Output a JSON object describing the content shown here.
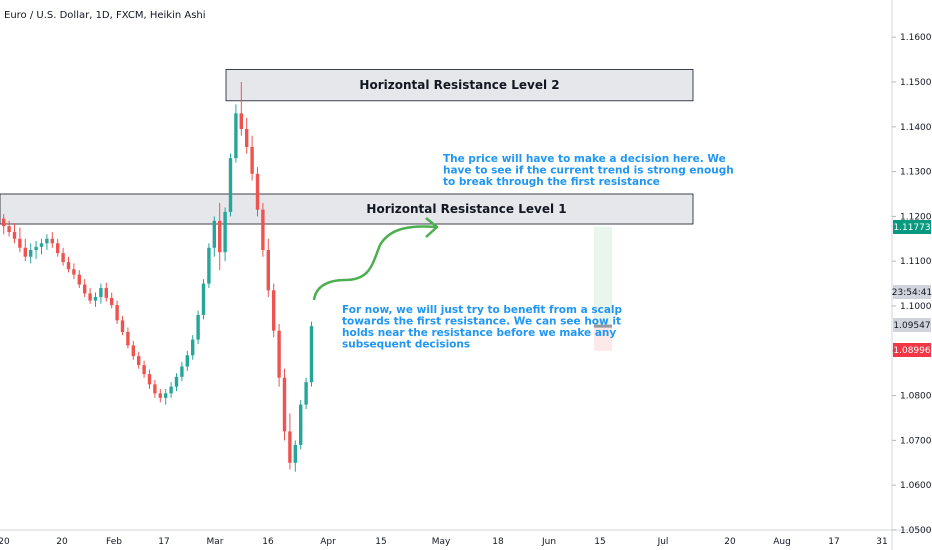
{
  "chart_data": {
    "type": "candlestick",
    "title": "Euro / U.S. Dollar, 1D, FXCM, Heikin Ashi",
    "ylim": [
      1.05,
      1.1683
    ],
    "y_ticks": [
      "1.16000",
      "1.15000",
      "1.14000",
      "1.13000",
      "1.12000",
      "1.11000",
      "1.10000",
      "1.09000",
      "1.08000",
      "1.07000",
      "1.06000",
      "1.05000"
    ],
    "x_ticks": [
      "20",
      "20",
      "Feb",
      "17",
      "Mar",
      "16",
      "Apr",
      "15",
      "May",
      "18",
      "Jun",
      "15",
      "Jul",
      "20",
      "Aug",
      "17",
      "31"
    ],
    "zones": [
      {
        "label": "Horizontal Resistance Level 2",
        "low": 1.1458,
        "high": 1.1528
      },
      {
        "label": "Horizontal Resistance Level 1",
        "low": 1.1183,
        "high": 1.125
      }
    ],
    "annotations": [
      {
        "lines": [
          "The price will have to make a decision here. We",
          "have to see if the current trend is strong enough",
          "to break through the first resistance"
        ]
      },
      {
        "lines": [
          "For now, we will just try to benefit from a scalp",
          "towards the first resistance. We can see how it",
          "holds near the resistance before we make any",
          "subsequent decisions"
        ]
      }
    ],
    "price_tags": [
      {
        "value": "1.11773",
        "bg": "#089981",
        "fg": "#ffffff"
      },
      {
        "value": "23:54:41",
        "bg": "#d1d4dc",
        "fg": "#131722"
      },
      {
        "value": "1.09547",
        "bg": "#d1d4dc",
        "fg": "#131722"
      },
      {
        "value": "1.08996",
        "bg": "#f23645",
        "fg": "#ffffff"
      }
    ],
    "position": {
      "target": 1.1177,
      "entry": 1.0955,
      "stop": 1.09
    },
    "colors": {
      "up": "#26a69a",
      "down": "#ef5350",
      "arrow": "#4caf50",
      "note": "#2196f3"
    },
    "candles": [
      {
        "o": 1.1195,
        "h": 1.1205,
        "l": 1.116,
        "c": 1.1178
      },
      {
        "o": 1.1178,
        "h": 1.119,
        "l": 1.1155,
        "c": 1.1165
      },
      {
        "o": 1.1165,
        "h": 1.1185,
        "l": 1.114,
        "c": 1.115
      },
      {
        "o": 1.115,
        "h": 1.1175,
        "l": 1.112,
        "c": 1.113
      },
      {
        "o": 1.113,
        "h": 1.115,
        "l": 1.11,
        "c": 1.111
      },
      {
        "o": 1.111,
        "h": 1.114,
        "l": 1.1095,
        "c": 1.1125
      },
      {
        "o": 1.1125,
        "h": 1.1145,
        "l": 1.1105,
        "c": 1.1132
      },
      {
        "o": 1.1132,
        "h": 1.115,
        "l": 1.1115,
        "c": 1.114
      },
      {
        "o": 1.114,
        "h": 1.116,
        "l": 1.1125,
        "c": 1.115
      },
      {
        "o": 1.115,
        "h": 1.1165,
        "l": 1.113,
        "c": 1.114
      },
      {
        "o": 1.114,
        "h": 1.115,
        "l": 1.111,
        "c": 1.1118
      },
      {
        "o": 1.1118,
        "h": 1.113,
        "l": 1.109,
        "c": 1.1098
      },
      {
        "o": 1.1098,
        "h": 1.111,
        "l": 1.1075,
        "c": 1.1082
      },
      {
        "o": 1.1082,
        "h": 1.1095,
        "l": 1.106,
        "c": 1.107
      },
      {
        "o": 1.107,
        "h": 1.108,
        "l": 1.104,
        "c": 1.1048
      },
      {
        "o": 1.1048,
        "h": 1.106,
        "l": 1.102,
        "c": 1.1028
      },
      {
        "o": 1.1028,
        "h": 1.104,
        "l": 1.1005,
        "c": 1.1012
      },
      {
        "o": 1.1012,
        "h": 1.103,
        "l": 1.0998,
        "c": 1.102
      },
      {
        "o": 1.102,
        "h": 1.105,
        "l": 1.1005,
        "c": 1.104
      },
      {
        "o": 1.104,
        "h": 1.1052,
        "l": 1.101,
        "c": 1.1018
      },
      {
        "o": 1.1018,
        "h": 1.103,
        "l": 1.0995,
        "c": 1.1002
      },
      {
        "o": 1.1002,
        "h": 1.1012,
        "l": 1.096,
        "c": 1.0968
      },
      {
        "o": 1.0968,
        "h": 1.0978,
        "l": 1.0935,
        "c": 1.0942
      },
      {
        "o": 1.0942,
        "h": 1.0952,
        "l": 1.0905,
        "c": 1.0912
      },
      {
        "o": 1.0912,
        "h": 1.0922,
        "l": 1.088,
        "c": 1.0888
      },
      {
        "o": 1.0888,
        "h": 1.0898,
        "l": 1.086,
        "c": 1.0868
      },
      {
        "o": 1.0868,
        "h": 1.0878,
        "l": 1.084,
        "c": 1.0848
      },
      {
        "o": 1.0848,
        "h": 1.0858,
        "l": 1.0815,
        "c": 1.0825
      },
      {
        "o": 1.0825,
        "h": 1.0835,
        "l": 1.0795,
        "c": 1.0805
      },
      {
        "o": 1.0805,
        "h": 1.0815,
        "l": 1.0785,
        "c": 1.0795
      },
      {
        "o": 1.0795,
        "h": 1.0815,
        "l": 1.078,
        "c": 1.0805
      },
      {
        "o": 1.0805,
        "h": 1.083,
        "l": 1.0795,
        "c": 1.082
      },
      {
        "o": 1.082,
        "h": 1.085,
        "l": 1.081,
        "c": 1.0842
      },
      {
        "o": 1.0842,
        "h": 1.0875,
        "l": 1.0832,
        "c": 1.0865
      },
      {
        "o": 1.0865,
        "h": 1.09,
        "l": 1.0855,
        "c": 1.089
      },
      {
        "o": 1.089,
        "h": 1.0935,
        "l": 1.088,
        "c": 1.0925
      },
      {
        "o": 1.0925,
        "h": 1.099,
        "l": 1.0915,
        "c": 1.098
      },
      {
        "o": 1.098,
        "h": 1.106,
        "l": 1.097,
        "c": 1.105
      },
      {
        "o": 1.105,
        "h": 1.114,
        "l": 1.104,
        "c": 1.113
      },
      {
        "o": 1.113,
        "h": 1.12,
        "l": 1.111,
        "c": 1.119
      },
      {
        "o": 1.119,
        "h": 1.123,
        "l": 1.108,
        "c": 1.112
      },
      {
        "o": 1.112,
        "h": 1.122,
        "l": 1.11,
        "c": 1.121
      },
      {
        "o": 1.121,
        "h": 1.134,
        "l": 1.12,
        "c": 1.133
      },
      {
        "o": 1.133,
        "h": 1.145,
        "l": 1.132,
        "c": 1.143
      },
      {
        "o": 1.143,
        "h": 1.15,
        "l": 1.138,
        "c": 1.1395
      },
      {
        "o": 1.1395,
        "h": 1.142,
        "l": 1.134,
        "c": 1.1355
      },
      {
        "o": 1.1355,
        "h": 1.138,
        "l": 1.128,
        "c": 1.1295
      },
      {
        "o": 1.1295,
        "h": 1.131,
        "l": 1.12,
        "c": 1.1215
      },
      {
        "o": 1.1215,
        "h": 1.123,
        "l": 1.111,
        "c": 1.1125
      },
      {
        "o": 1.1125,
        "h": 1.115,
        "l": 1.102,
        "c": 1.1035
      },
      {
        "o": 1.1035,
        "h": 1.105,
        "l": 1.093,
        "c": 1.0945
      },
      {
        "o": 1.0945,
        "h": 1.096,
        "l": 1.082,
        "c": 1.084
      },
      {
        "o": 1.084,
        "h": 1.086,
        "l": 1.07,
        "c": 1.072
      },
      {
        "o": 1.072,
        "h": 1.076,
        "l": 1.0635,
        "c": 1.065
      },
      {
        "o": 1.065,
        "h": 1.07,
        "l": 1.063,
        "c": 1.069
      },
      {
        "o": 1.069,
        "h": 1.079,
        "l": 1.068,
        "c": 1.078
      },
      {
        "o": 1.078,
        "h": 1.084,
        "l": 1.077,
        "c": 1.083
      },
      {
        "o": 1.083,
        "h": 1.0965,
        "l": 1.082,
        "c": 1.0955
      }
    ]
  }
}
